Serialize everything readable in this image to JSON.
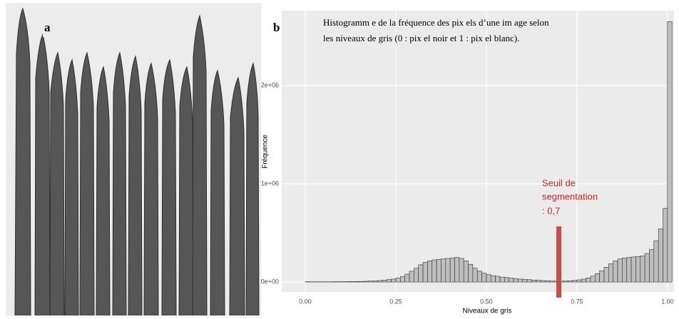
{
  "chart_data": {
    "type": "histogram",
    "panels": [
      "a",
      "b"
    ],
    "title_lines": [
      "Histogramm e de la fréquence des pix els d’une im age selon",
      "les niveaux de gris (0 : pix el noir et 1 : pix el blanc)."
    ],
    "xlabel": "Niveaux de gris",
    "ylabel": "Fréquence",
    "bins": [
      0,
      0.0125,
      0.025,
      0.0375,
      0.05,
      0.0625,
      0.075,
      0.0875,
      0.1,
      0.1125,
      0.125,
      0.1375,
      0.15,
      0.1625,
      0.175,
      0.1875,
      0.2,
      0.2125,
      0.225,
      0.2375,
      0.25,
      0.2625,
      0.275,
      0.2875,
      0.3,
      0.3125,
      0.325,
      0.3375,
      0.35,
      0.3625,
      0.375,
      0.3875,
      0.4,
      0.4125,
      0.425,
      0.4375,
      0.45,
      0.4625,
      0.475,
      0.4875,
      0.5,
      0.5125,
      0.525,
      0.5375,
      0.55,
      0.5625,
      0.575,
      0.5875,
      0.6,
      0.6125,
      0.625,
      0.6375,
      0.65,
      0.6625,
      0.675,
      0.6875,
      0.7,
      0.7125,
      0.725,
      0.7375,
      0.75,
      0.7625,
      0.775,
      0.7875,
      0.8,
      0.8125,
      0.825,
      0.8375,
      0.85,
      0.8625,
      0.875,
      0.8875,
      0.9,
      0.9125,
      0.925,
      0.9375,
      0.95,
      0.9625,
      0.975,
      0.9875,
      1.0,
      1.0125
    ],
    "values": [
      3000,
      2000,
      2000,
      2000,
      2000,
      2000,
      3000,
      3000,
      3000,
      4000,
      4000,
      5000,
      6000,
      8000,
      10000,
      12000,
      15000,
      20000,
      25000,
      30000,
      40000,
      55000,
      80000,
      110000,
      140000,
      175000,
      200000,
      215000,
      225000,
      230000,
      235000,
      240000,
      245000,
      250000,
      240000,
      215000,
      180000,
      140000,
      110000,
      90000,
      75000,
      65000,
      58000,
      50000,
      45000,
      40000,
      35000,
      30000,
      27000,
      24000,
      20000,
      18000,
      15000,
      12000,
      10000,
      9000,
      9000,
      10000,
      12000,
      16000,
      22000,
      30000,
      42000,
      60000,
      85000,
      115000,
      150000,
      185000,
      215000,
      235000,
      245000,
      250000,
      255000,
      260000,
      265000,
      290000,
      330000,
      420000,
      540000,
      750000,
      2650000
    ],
    "color": "#bebebe",
    "xlim": [
      -0.065,
      1.018
    ],
    "ylim": [
      -101000,
      2761000
    ],
    "xticks": [
      {
        "value": 0,
        "label": "0.00"
      },
      {
        "value": 0.25,
        "label": "0.25"
      },
      {
        "value": 0.5,
        "label": "0.50"
      },
      {
        "value": 0.75,
        "label": "0.75"
      },
      {
        "value": 1,
        "label": "1.00"
      }
    ],
    "yticks": [
      {
        "value": 0,
        "label": "0e+00"
      },
      {
        "value": 1000000,
        "label": "1e+06"
      },
      {
        "value": 2000000,
        "label": "2e+06"
      }
    ],
    "grid": true,
    "threshold_text": [
      "Seuil de",
      "segmentation"
    ],
    "threshold": {
      "value": 0.7,
      "label": ": 0,7"
    },
    "threshold_color": "#c0504d"
  }
}
